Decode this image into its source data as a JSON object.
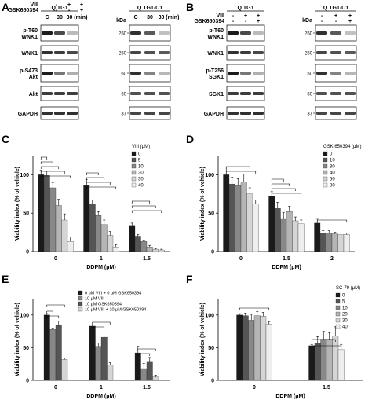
{
  "panels": {
    "A": {
      "letter": "A",
      "blot_left": {
        "title": "Q TG1",
        "treat_rows": [
          {
            "name": "VIII",
            "cells": [
              "-",
              "+",
              "+"
            ]
          },
          {
            "name": "GSK650394",
            "cells": [
              "-",
              "-",
              "+"
            ]
          }
        ],
        "lane_header": [
          "C",
          "30",
          "30 (min)"
        ],
        "rows": [
          "p-T60\nWNK1",
          "WNK1",
          "p-S473\nAkt",
          "Akt",
          "GAPDH"
        ]
      },
      "blot_right": {
        "title": "Q TG1-C1",
        "kda_label": "kDa",
        "lane_header": [
          "C",
          "30",
          "30 (min)"
        ],
        "kda": [
          "250",
          "250",
          "60",
          "60",
          "37"
        ]
      }
    },
    "B": {
      "letter": "B",
      "blot_left": {
        "title": "Q TG1",
        "treat_rows": [
          {
            "name": "VIII",
            "cells": [
              "-",
              "+",
              "+"
            ]
          },
          {
            "name": "GSK650394",
            "cells": [
              "-",
              "-",
              "+"
            ]
          }
        ],
        "rows": [
          "p-T60\nWNK1",
          "WNK1",
          "p-T256\nSGK1",
          "SGK1",
          "GAPDH"
        ]
      },
      "blot_right": {
        "title": "Q TG1-C1",
        "kda_label": "kDa",
        "kda": [
          "250",
          "250",
          "50",
          "50",
          "37"
        ]
      }
    },
    "C": {
      "letter": "C"
    },
    "D": {
      "letter": "D"
    },
    "E": {
      "letter": "E"
    },
    "F": {
      "letter": "F"
    }
  },
  "colors": {
    "c0": "#1a1a1a",
    "c1": "#555555",
    "c2": "#888888",
    "c3": "#b5b5b5",
    "c4": "#d5d5d5",
    "c5": "#eeeeee",
    "band": "#1b1b1b"
  },
  "chart_data": [
    {
      "panel": "C",
      "type": "bar",
      "ylabel": "Viability index (% of vehicle)",
      "xlabel": "DDPM (μM)",
      "legend_title": "VIII (μM)",
      "legend_position": "top-right",
      "ylim": [
        0,
        125
      ],
      "yticks": [
        0,
        50,
        100
      ],
      "categories": [
        "0",
        "1",
        "1.5"
      ],
      "series": [
        {
          "name": "0",
          "values": [
            100,
            86,
            34
          ]
        },
        {
          "name": "5",
          "values": [
            99,
            62,
            20
          ]
        },
        {
          "name": "10",
          "values": [
            83,
            47,
            13
          ]
        },
        {
          "name": "20",
          "values": [
            60,
            35,
            6
          ]
        },
        {
          "name": "30",
          "values": [
            41,
            21,
            3
          ]
        },
        {
          "name": "40",
          "values": [
            13,
            6,
            2
          ]
        }
      ],
      "errors": [
        [
          6,
          8,
          3
        ],
        [
          6,
          5,
          2
        ],
        [
          7,
          5,
          2
        ],
        [
          8,
          6,
          2
        ],
        [
          8,
          5,
          1
        ],
        [
          6,
          3,
          1
        ]
      ]
    },
    {
      "panel": "D",
      "type": "bar",
      "ylabel": "Viability index (% of vehicle)",
      "xlabel": "DDPM (μM)",
      "legend_title": "GSK 650394 (μM)",
      "legend_position": "top-right",
      "ylim": [
        0,
        125
      ],
      "yticks": [
        0,
        50,
        100
      ],
      "categories": [
        "0",
        "1.5",
        "2"
      ],
      "series": [
        {
          "name": "0",
          "values": [
            100,
            72,
            37
          ]
        },
        {
          "name": "10",
          "values": [
            88,
            56,
            24
          ]
        },
        {
          "name": "30",
          "values": [
            86,
            43,
            24
          ]
        },
        {
          "name": "40",
          "values": [
            91,
            52,
            23
          ]
        },
        {
          "name": "50",
          "values": [
            75,
            40,
            22
          ]
        },
        {
          "name": "80",
          "values": [
            62,
            36,
            22
          ]
        }
      ],
      "errors": [
        [
          10,
          6,
          6
        ],
        [
          9,
          8,
          3
        ],
        [
          9,
          8,
          3
        ],
        [
          10,
          7,
          2
        ],
        [
          8,
          5,
          2
        ],
        [
          5,
          5,
          2
        ]
      ]
    },
    {
      "panel": "E",
      "type": "bar",
      "ylabel": "Viability index (% of vehicle)",
      "xlabel": "DDPM (μM)",
      "legend_position": "top-right",
      "ylim": [
        0,
        125
      ],
      "yticks": [
        0,
        50,
        100
      ],
      "categories": [
        "0",
        "1",
        "1.5"
      ],
      "series": [
        {
          "name": "0 μM VIII + 0 μM GSK650394",
          "values": [
            100,
            83,
            42
          ]
        },
        {
          "name": "10 μM VIII",
          "values": [
            78,
            52,
            18
          ]
        },
        {
          "name": "10 μM GSK650394",
          "values": [
            84,
            66,
            29
          ]
        },
        {
          "name": "10 μM VIII + 10 μM GSK650394",
          "values": [
            32,
            23,
            5
          ]
        }
      ],
      "errors": [
        [
          2,
          2,
          10
        ],
        [
          2,
          5,
          8
        ],
        [
          7,
          2,
          6
        ],
        [
          2,
          4,
          3
        ]
      ]
    },
    {
      "panel": "F",
      "type": "bar",
      "ylabel": "Viability index (% of vehicle)",
      "xlabel": "DDPM (μM)",
      "legend_title": "SC-79 (μM)",
      "legend_position": "top-right",
      "ylim": [
        0,
        125
      ],
      "yticks": [
        0,
        50,
        100
      ],
      "categories": [
        "0",
        "1.5"
      ],
      "series": [
        {
          "name": "0",
          "values": [
            100,
            53
          ]
        },
        {
          "name": "5",
          "values": [
            99,
            57
          ]
        },
        {
          "name": "10",
          "values": [
            92,
            63
          ]
        },
        {
          "name": "20",
          "values": [
            99,
            63
          ]
        },
        {
          "name": "30",
          "values": [
            98,
            68
          ]
        },
        {
          "name": "40",
          "values": [
            86,
            47
          ]
        }
      ],
      "errors": [
        [
          2,
          2
        ],
        [
          4,
          10
        ],
        [
          9,
          12
        ],
        [
          6,
          10
        ],
        [
          6,
          14
        ],
        [
          4,
          8
        ]
      ]
    }
  ]
}
